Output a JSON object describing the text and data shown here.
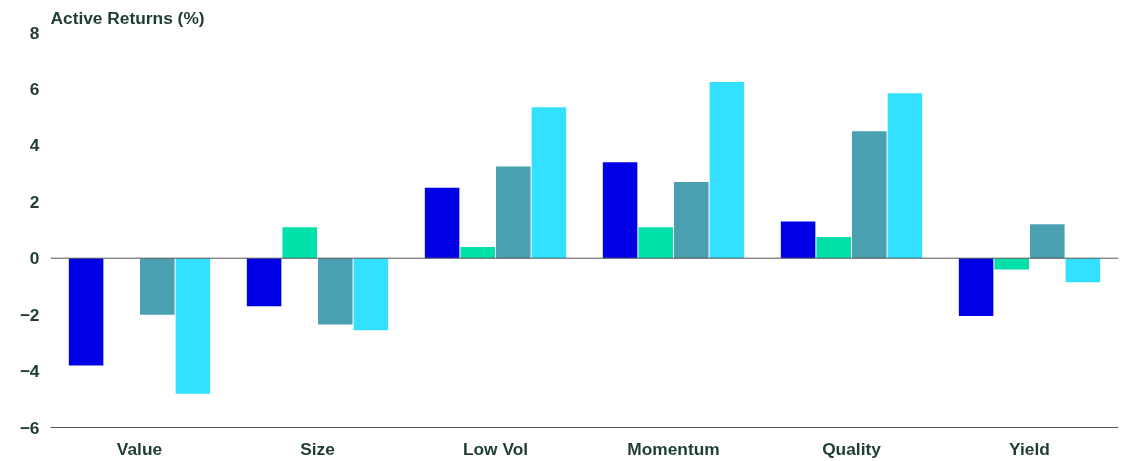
{
  "chart_data": {
    "type": "bar",
    "title": "Active Returns (%)",
    "categories": [
      "Value",
      "Size",
      "Low Vol",
      "Momentum",
      "Quality",
      "Yield"
    ],
    "series": [
      {
        "color": "#0000e6",
        "values": [
          -3.8,
          -1.7,
          2.5,
          3.4,
          1.3,
          -2.05
        ]
      },
      {
        "color": "#00e0a8",
        "values": [
          0.0,
          1.1,
          0.4,
          1.1,
          0.75,
          -0.4
        ]
      },
      {
        "color": "#4aa0b0",
        "values": [
          -2.0,
          -2.35,
          3.25,
          2.7,
          4.5,
          1.2
        ]
      },
      {
        "color": "#33e0ff",
        "values": [
          -4.8,
          -2.55,
          5.35,
          6.25,
          5.85,
          -0.85
        ]
      }
    ],
    "ylim": [
      -6,
      8
    ],
    "yticks": [
      -6,
      -4,
      -2,
      0,
      2,
      4,
      6,
      8
    ],
    "ref_lines": [
      {
        "axis": "y",
        "value": 0,
        "color": "#555555"
      }
    ],
    "grid": false
  }
}
